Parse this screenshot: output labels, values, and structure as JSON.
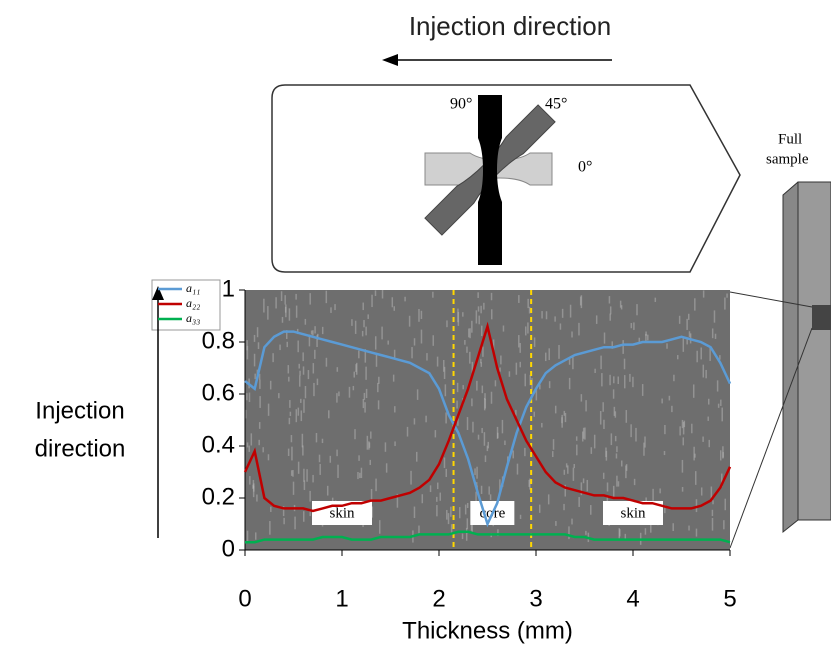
{
  "diagram": {
    "title": "Injection direction",
    "angles": [
      "90°",
      "45°",
      "0°"
    ],
    "sample_label": [
      "Full",
      "sample"
    ]
  },
  "chart_data": {
    "type": "line",
    "xlabel": "Thickness (mm)",
    "ylabel": [
      "Injection",
      "direction"
    ],
    "x": [
      0,
      0.1,
      0.2,
      0.3,
      0.4,
      0.5,
      0.6,
      0.7,
      0.8,
      0.9,
      1,
      1.1,
      1.2,
      1.3,
      1.4,
      1.5,
      1.6,
      1.7,
      1.8,
      1.9,
      2,
      2.1,
      2.2,
      2.3,
      2.4,
      2.5,
      2.6,
      2.7,
      2.8,
      2.9,
      3,
      3.1,
      3.2,
      3.3,
      3.4,
      3.5,
      3.6,
      3.7,
      3.8,
      3.9,
      4,
      4.1,
      4.2,
      4.3,
      4.4,
      4.5,
      4.6,
      4.7,
      4.8,
      4.9,
      5
    ],
    "series": [
      {
        "name": "a₁₁",
        "color": "#5b9bd5",
        "values": [
          0.65,
          0.62,
          0.78,
          0.82,
          0.84,
          0.84,
          0.83,
          0.82,
          0.81,
          0.8,
          0.79,
          0.78,
          0.77,
          0.76,
          0.75,
          0.74,
          0.73,
          0.72,
          0.7,
          0.68,
          0.62,
          0.52,
          0.45,
          0.35,
          0.22,
          0.1,
          0.18,
          0.32,
          0.45,
          0.55,
          0.62,
          0.68,
          0.71,
          0.73,
          0.75,
          0.76,
          0.77,
          0.78,
          0.78,
          0.79,
          0.79,
          0.8,
          0.8,
          0.8,
          0.81,
          0.82,
          0.81,
          0.8,
          0.78,
          0.72,
          0.64
        ]
      },
      {
        "name": "a₂₂",
        "color": "#c00000",
        "values": [
          0.3,
          0.38,
          0.2,
          0.17,
          0.16,
          0.16,
          0.16,
          0.15,
          0.16,
          0.17,
          0.17,
          0.18,
          0.18,
          0.19,
          0.19,
          0.2,
          0.21,
          0.22,
          0.24,
          0.27,
          0.33,
          0.42,
          0.52,
          0.62,
          0.74,
          0.86,
          0.7,
          0.58,
          0.5,
          0.42,
          0.36,
          0.3,
          0.26,
          0.24,
          0.23,
          0.22,
          0.21,
          0.21,
          0.2,
          0.2,
          0.19,
          0.18,
          0.18,
          0.17,
          0.16,
          0.16,
          0.16,
          0.17,
          0.19,
          0.24,
          0.32
        ]
      },
      {
        "name": "a₃₃",
        "color": "#00b050",
        "values": [
          0.03,
          0.03,
          0.04,
          0.04,
          0.04,
          0.04,
          0.04,
          0.04,
          0.05,
          0.05,
          0.05,
          0.04,
          0.04,
          0.04,
          0.05,
          0.05,
          0.05,
          0.05,
          0.06,
          0.06,
          0.06,
          0.06,
          0.07,
          0.07,
          0.06,
          0.06,
          0.06,
          0.06,
          0.06,
          0.06,
          0.06,
          0.06,
          0.06,
          0.06,
          0.05,
          0.05,
          0.04,
          0.04,
          0.04,
          0.04,
          0.04,
          0.04,
          0.04,
          0.04,
          0.04,
          0.04,
          0.04,
          0.04,
          0.04,
          0.04,
          0.03
        ]
      }
    ],
    "region_boundaries": [
      2.15,
      2.95
    ],
    "annotations": [
      "skin",
      "core",
      "skin"
    ],
    "xlim": [
      0,
      5
    ],
    "ylim": [
      0,
      1
    ],
    "xticks": [
      0,
      1,
      2,
      3,
      4,
      5
    ],
    "yticks": [
      0,
      0.2,
      0.4,
      0.6,
      0.8,
      1
    ]
  }
}
